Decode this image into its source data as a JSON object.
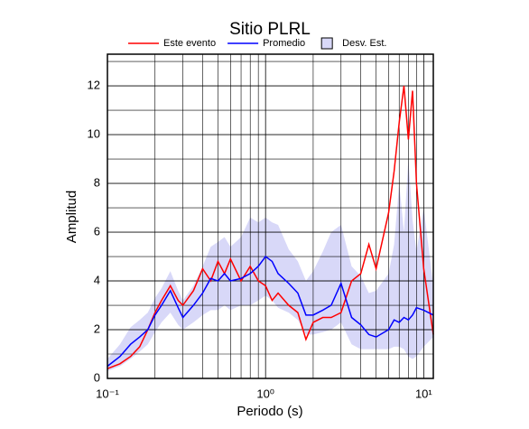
{
  "chart_data": {
    "type": "line",
    "title": "Sitio PLRL",
    "x_label": "Periodo (s)",
    "y_label": "Amplitud",
    "x_scale": "log",
    "grid": true,
    "minor_grid": true,
    "legend": "top",
    "x": [
      0.1,
      0.12,
      0.14,
      0.16,
      0.18,
      0.2,
      0.22,
      0.25,
      0.28,
      0.3,
      0.35,
      0.4,
      0.45,
      0.5,
      0.55,
      0.6,
      0.7,
      0.8,
      0.9,
      1.0,
      1.1,
      1.2,
      1.4,
      1.6,
      1.8,
      2.0,
      2.3,
      2.6,
      3.0,
      3.5,
      4,
      4.5,
      5,
      6,
      6.5,
      7,
      7.5,
      8,
      8.5,
      9,
      10,
      11.5
    ],
    "series": [
      {
        "name": "Este evento",
        "color": "#ff0000",
        "values": [
          0.4,
          0.6,
          0.9,
          1.3,
          2.0,
          2.7,
          3.2,
          3.8,
          3.2,
          3.0,
          3.6,
          4.5,
          4.0,
          4.8,
          4.3,
          4.9,
          4.0,
          4.6,
          4.0,
          3.8,
          3.2,
          3.5,
          3.0,
          2.7,
          1.6,
          2.3,
          2.5,
          2.5,
          2.7,
          4.0,
          4.3,
          5.5,
          4.5,
          6.8,
          8.5,
          10.5,
          12.0,
          9.8,
          11.8,
          8.0,
          4.5,
          1.8
        ]
      },
      {
        "name": "Promedio",
        "color": "#0000ff",
        "values": [
          0.5,
          0.9,
          1.4,
          1.7,
          2.0,
          2.6,
          3.0,
          3.6,
          2.9,
          2.5,
          3.0,
          3.5,
          4.1,
          4.0,
          4.3,
          4.0,
          4.1,
          4.3,
          4.6,
          5.0,
          4.8,
          4.3,
          3.9,
          3.5,
          2.6,
          2.6,
          2.8,
          3.0,
          3.9,
          2.5,
          2.2,
          1.8,
          1.7,
          2.0,
          2.4,
          2.3,
          2.5,
          2.4,
          2.6,
          2.9,
          2.8,
          2.6
        ]
      }
    ],
    "band": {
      "name": "Desv. Est.",
      "color": "#d8d8f8",
      "lower": [
        0.3,
        0.5,
        0.8,
        1.1,
        1.4,
        1.9,
        2.3,
        2.7,
        2.2,
        2.0,
        2.3,
        2.6,
        2.8,
        2.8,
        3.0,
        2.8,
        3.0,
        3.0,
        3.2,
        3.4,
        3.2,
        2.9,
        2.7,
        2.4,
        1.8,
        1.8,
        1.9,
        2.0,
        2.3,
        1.4,
        1.2,
        1.2,
        1.2,
        1.2,
        1.3,
        1.3,
        1.2,
        0.9,
        0.8,
        0.9,
        1.3,
        1.7
      ],
      "upper": [
        0.8,
        1.4,
        2.1,
        2.4,
        2.7,
        3.3,
        3.7,
        4.4,
        3.6,
        3.2,
        3.8,
        4.6,
        5.4,
        5.6,
        5.8,
        5.4,
        5.8,
        6.6,
        6.4,
        6.6,
        6.4,
        6.3,
        5.3,
        4.8,
        4.0,
        4.4,
        5.2,
        6.0,
        6.3,
        4.6,
        4.2,
        3.5,
        3.6,
        4.3,
        5.5,
        8.0,
        6.0,
        9.0,
        6.5,
        5.2,
        7.0,
        3.8
      ]
    },
    "xlim": [
      0.1,
      11.5
    ],
    "ylim": [
      0,
      13.3
    ],
    "xticks": [
      {
        "value": 0.1,
        "label": "10⁻¹"
      },
      {
        "value": 1,
        "label": "10⁰"
      },
      {
        "value": 10,
        "label": "10¹"
      }
    ],
    "yticks": [
      0,
      2,
      4,
      6,
      8,
      10,
      12
    ]
  }
}
